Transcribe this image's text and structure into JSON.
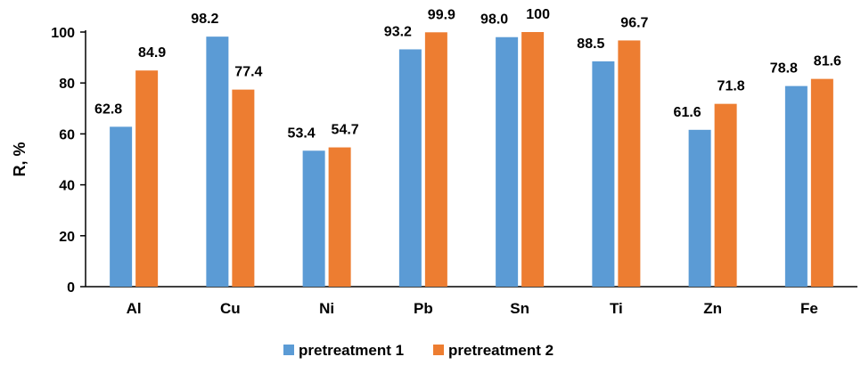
{
  "chart_data": {
    "type": "bar",
    "categories": [
      "Al",
      "Cu",
      "Ni",
      "Pb",
      "Sn",
      "Ti",
      "Zn",
      "Fe"
    ],
    "series": [
      {
        "name": "pretreatment 1",
        "values": [
          62.8,
          98.2,
          53.4,
          93.2,
          98.0,
          88.5,
          61.6,
          78.8
        ],
        "labels": [
          "62.8",
          "98.2",
          "53.4",
          "93.2",
          "98.0",
          "88.5",
          "61.6",
          "78.8"
        ],
        "color": "#5B9BD5"
      },
      {
        "name": "pretreatment 2",
        "values": [
          84.9,
          77.4,
          54.7,
          99.9,
          100,
          96.7,
          71.8,
          81.6
        ],
        "labels": [
          "84.9",
          "77.4",
          "54.7",
          "99.9",
          "100",
          "96.7",
          "71.8",
          "81.6"
        ],
        "color": "#ED7D31"
      }
    ],
    "title": "",
    "xlabel": "",
    "ylabel": "R, %",
    "ylim": [
      0,
      100
    ],
    "yticks": [
      "0",
      "20",
      "40",
      "60",
      "80",
      "100"
    ],
    "grid": false,
    "legend_position": "bottom"
  }
}
